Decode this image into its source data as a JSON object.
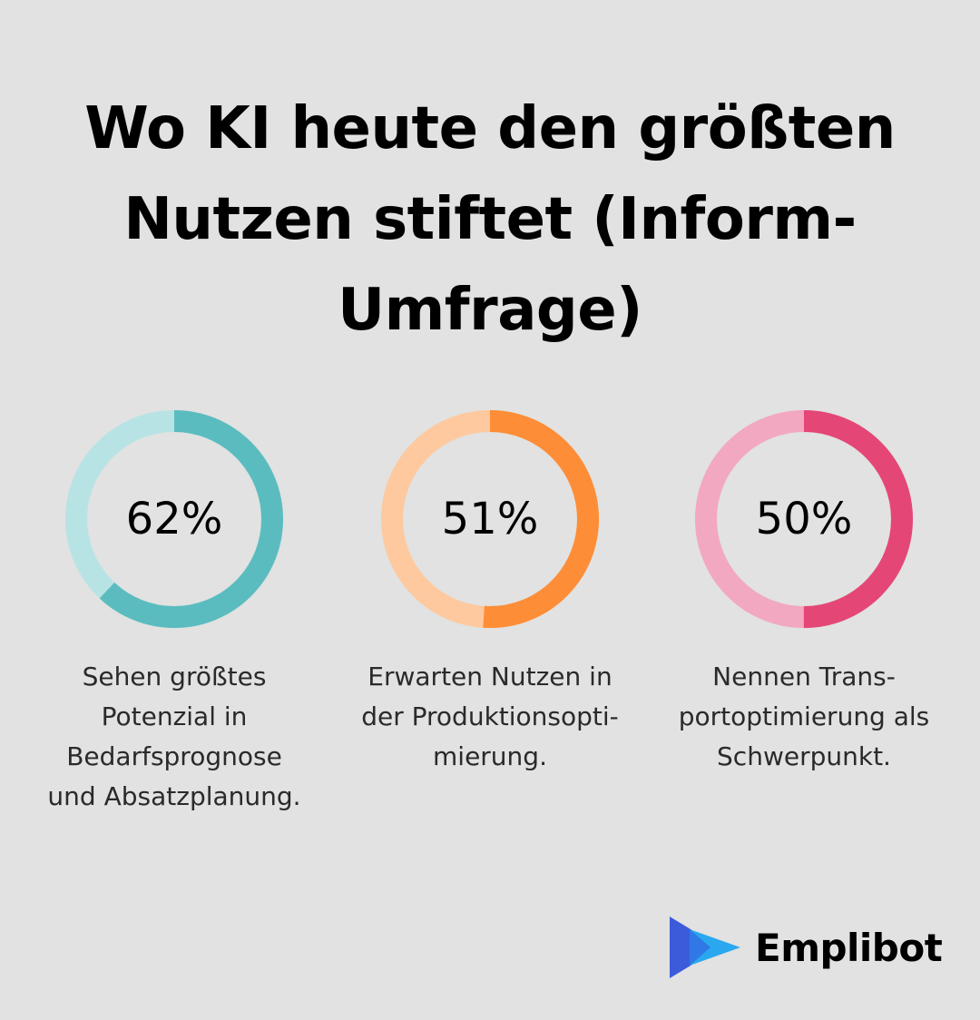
{
  "title_lines": [
    "Wo KI heute den größten",
    "Nutzen stiftet (Inform-",
    "Umfrage)"
  ],
  "chart_data": {
    "type": "pie",
    "title": "Wo KI heute den größten Nutzen stiftet (Inform-Umfrage)",
    "items": [
      {
        "value": 62,
        "label": "62%",
        "caption_lines": [
          "Sehen größtes",
          "Potenzial in",
          "Bedarfsprognose",
          "und Absatzplanung."
        ],
        "color": "#5bbcbf",
        "track_color": "#b8e3e4"
      },
      {
        "value": 51,
        "label": "51%",
        "caption_lines": [
          "Erwarten Nutzen in",
          "der Produktionsopti-",
          "mierung."
        ],
        "color": "#fd8d37",
        "track_color": "#fec99e"
      },
      {
        "value": 50,
        "label": "50%",
        "caption_lines": [
          "Nennen Trans-",
          "portoptimierung als",
          "Schwerpunkt."
        ],
        "color": "#e44776",
        "track_color": "#f2a8c0"
      }
    ]
  },
  "brand": {
    "name": "Emplibot",
    "logo_icon": "play-arrow-logo-icon",
    "logo_colors": [
      "#3b5bdb",
      "#29a8f0"
    ]
  }
}
